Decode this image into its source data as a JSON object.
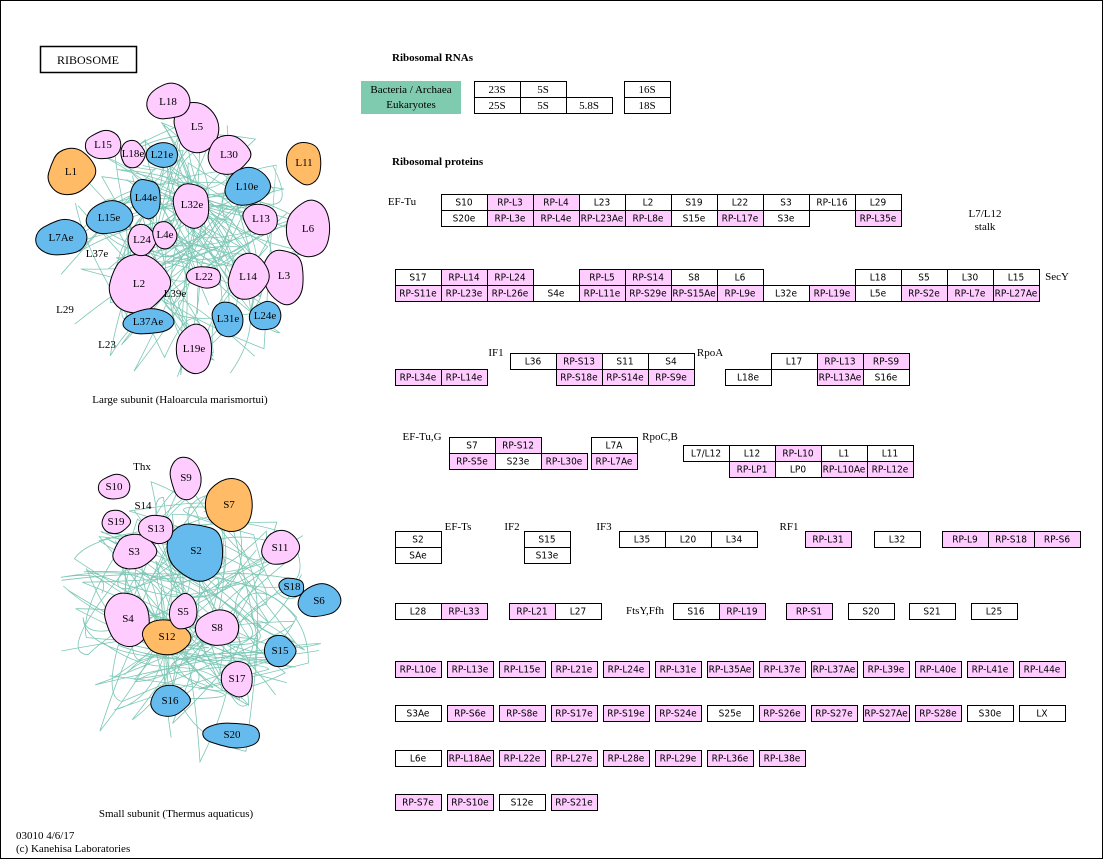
{
  "title": "RIBOSOME",
  "rna": {
    "heading": "Ribosomal RNAs",
    "legend": [
      "Bacteria / Archaea",
      "Eukaryotes"
    ],
    "boxes": [
      "23S",
      "5S",
      "16S",
      "25S",
      "5S",
      "5.8S",
      "18S"
    ]
  },
  "proteins": {
    "heading": "Ribosomal proteins",
    "labels": [
      "EF-Tu",
      "L7/L12",
      "stalk",
      "SecY",
      "IF1",
      "RpoA",
      "EF-Tu,G",
      "RpoC,B",
      "EF-Ts",
      "IF2",
      "IF3",
      "RF1",
      "FtsY,Ffh"
    ],
    "boxes": [
      {
        "label": "S10",
        "color": "#ffffff"
      },
      {
        "label": "RP-L3",
        "color": "#ffccff"
      },
      {
        "label": "RP-L4",
        "color": "#ffccff"
      },
      {
        "label": "L23",
        "color": "#ffffff"
      },
      {
        "label": "L2",
        "color": "#ffffff"
      },
      {
        "label": "S19",
        "color": "#ffffff"
      },
      {
        "label": "L22",
        "color": "#ffffff"
      },
      {
        "label": "S3",
        "color": "#ffffff"
      },
      {
        "label": "RP-L16",
        "color": "#ffffff"
      },
      {
        "label": "L29",
        "color": "#ffffff"
      },
      {
        "label": "S20e",
        "color": "#ffffff"
      },
      {
        "label": "RP-L3e",
        "color": "#ffccff"
      },
      {
        "label": "RP-L4e",
        "color": "#ffccff"
      },
      {
        "label": "RP-L23Ae",
        "color": "#ffccff"
      },
      {
        "label": "RP-L8e",
        "color": "#ffccff"
      },
      {
        "label": "S15e",
        "color": "#ffffff"
      },
      {
        "label": "RP-L17e",
        "color": "#ffccff"
      },
      {
        "label": "S3e",
        "color": "#ffffff"
      },
      {
        "label": "RP-L35e",
        "color": "#ffccff"
      },
      {
        "label": "S17",
        "color": "#ffffff"
      },
      {
        "label": "RP-L14",
        "color": "#ffccff"
      },
      {
        "label": "RP-L24",
        "color": "#ffccff"
      },
      {
        "label": "RP-L5",
        "color": "#ffccff"
      },
      {
        "label": "RP-S14",
        "color": "#ffccff"
      },
      {
        "label": "S8",
        "color": "#ffffff"
      },
      {
        "label": "L6",
        "color": "#ffffff"
      },
      {
        "label": "L18",
        "color": "#ffffff"
      },
      {
        "label": "S5",
        "color": "#ffffff"
      },
      {
        "label": "L30",
        "color": "#ffffff"
      },
      {
        "label": "L15",
        "color": "#ffffff"
      },
      {
        "label": "RP-S11e",
        "color": "#ffccff"
      },
      {
        "label": "RP-L23e",
        "color": "#ffccff"
      },
      {
        "label": "RP-L26e",
        "color": "#ffccff"
      },
      {
        "label": "S4e",
        "color": "#ffffff"
      },
      {
        "label": "RP-L11e",
        "color": "#ffccff"
      },
      {
        "label": "RP-S29e",
        "color": "#ffccff"
      },
      {
        "label": "RP-S15Ae",
        "color": "#ffccff"
      },
      {
        "label": "RP-L9e",
        "color": "#ffccff"
      },
      {
        "label": "L32e",
        "color": "#ffffff"
      },
      {
        "label": "RP-L19e",
        "color": "#ffccff"
      },
      {
        "label": "L5e",
        "color": "#ffffff"
      },
      {
        "label": "RP-S2e",
        "color": "#ffccff"
      },
      {
        "label": "RP-L7e",
        "color": "#ffccff"
      },
      {
        "label": "RP-L27Ae",
        "color": "#ffccff"
      },
      {
        "label": "L36",
        "color": "#ffffff"
      },
      {
        "label": "RP-S13",
        "color": "#ffccff"
      },
      {
        "label": "S11",
        "color": "#ffffff"
      },
      {
        "label": "S4",
        "color": "#ffffff"
      },
      {
        "label": "L17",
        "color": "#ffffff"
      },
      {
        "label": "RP-L13",
        "color": "#ffccff"
      },
      {
        "label": "RP-S9",
        "color": "#ffccff"
      },
      {
        "label": "RP-L34e",
        "color": "#ffccff"
      },
      {
        "label": "RP-L14e",
        "color": "#ffccff"
      },
      {
        "label": "RP-S18e",
        "color": "#ffccff"
      },
      {
        "label": "RP-S14e",
        "color": "#ffccff"
      },
      {
        "label": "RP-S9e",
        "color": "#ffccff"
      },
      {
        "label": "L18e",
        "color": "#ffffff"
      },
      {
        "label": "RP-L13Ae",
        "color": "#ffccff"
      },
      {
        "label": "S16e",
        "color": "#ffffff"
      },
      {
        "label": "S7",
        "color": "#ffffff"
      },
      {
        "label": "RP-S12",
        "color": "#ffccff"
      },
      {
        "label": "L7A",
        "color": "#ffffff"
      },
      {
        "label": "RP-S5e",
        "color": "#ffccff"
      },
      {
        "label": "S23e",
        "color": "#ffffff"
      },
      {
        "label": "RP-L30e",
        "color": "#ffccff"
      },
      {
        "label": "RP-L7Ae",
        "color": "#ffccff"
      },
      {
        "label": "L7/L12",
        "color": "#ffffff"
      },
      {
        "label": "L12",
        "color": "#ffffff"
      },
      {
        "label": "RP-L10",
        "color": "#ffccff"
      },
      {
        "label": "L1",
        "color": "#ffffff"
      },
      {
        "label": "L11",
        "color": "#ffffff"
      },
      {
        "label": "RP-LP1",
        "color": "#ffccff"
      },
      {
        "label": "LP0",
        "color": "#ffffff"
      },
      {
        "label": "RP-L10Ae",
        "color": "#ffccff"
      },
      {
        "label": "RP-L12e",
        "color": "#ffccff"
      },
      {
        "label": "S2",
        "color": "#ffffff"
      },
      {
        "label": "S15",
        "color": "#ffffff"
      },
      {
        "label": "L35",
        "color": "#ffffff"
      },
      {
        "label": "L20",
        "color": "#ffffff"
      },
      {
        "label": "L34",
        "color": "#ffffff"
      },
      {
        "label": "RP-L31",
        "color": "#ffccff"
      },
      {
        "label": "L32",
        "color": "#ffffff"
      },
      {
        "label": "RP-L9",
        "color": "#ffccff"
      },
      {
        "label": "RP-S18",
        "color": "#ffccff"
      },
      {
        "label": "RP-S6",
        "color": "#ffccff"
      },
      {
        "label": "SAe",
        "color": "#ffffff"
      },
      {
        "label": "S13e",
        "color": "#ffffff"
      },
      {
        "label": "L28",
        "color": "#ffffff"
      },
      {
        "label": "RP-L33",
        "color": "#ffccff"
      },
      {
        "label": "RP-L21",
        "color": "#ffccff"
      },
      {
        "label": "L27",
        "color": "#ffffff"
      },
      {
        "label": "S16",
        "color": "#ffffff"
      },
      {
        "label": "RP-L19",
        "color": "#ffccff"
      },
      {
        "label": "RP-S1",
        "color": "#ffccff"
      },
      {
        "label": "S20",
        "color": "#ffffff"
      },
      {
        "label": "S21",
        "color": "#ffffff"
      },
      {
        "label": "L25",
        "color": "#ffffff"
      },
      {
        "label": "RP-L10e",
        "color": "#ffccff"
      },
      {
        "label": "RP-L13e",
        "color": "#ffccff"
      },
      {
        "label": "RP-L15e",
        "color": "#ffccff"
      },
      {
        "label": "RP-L21e",
        "color": "#ffccff"
      },
      {
        "label": "RP-L24e",
        "color": "#ffccff"
      },
      {
        "label": "RP-L31e",
        "color": "#ffccff"
      },
      {
        "label": "RP-L35Ae",
        "color": "#ffccff"
      },
      {
        "label": "RP-L37e",
        "color": "#ffccff"
      },
      {
        "label": "RP-L37Ae",
        "color": "#ffccff"
      },
      {
        "label": "RP-L39e",
        "color": "#ffccff"
      },
      {
        "label": "RP-L40e",
        "color": "#ffccff"
      },
      {
        "label": "RP-L41e",
        "color": "#ffccff"
      },
      {
        "label": "RP-L44e",
        "color": "#ffccff"
      },
      {
        "label": "S3Ae",
        "color": "#ffffff"
      },
      {
        "label": "RP-S6e",
        "color": "#ffccff"
      },
      {
        "label": "RP-S8e",
        "color": "#ffccff"
      },
      {
        "label": "RP-S17e",
        "color": "#ffccff"
      },
      {
        "label": "RP-S19e",
        "color": "#ffccff"
      },
      {
        "label": "RP-S24e",
        "color": "#ffccff"
      },
      {
        "label": "S25e",
        "color": "#ffffff"
      },
      {
        "label": "RP-S26e",
        "color": "#ffccff"
      },
      {
        "label": "RP-S27e",
        "color": "#ffccff"
      },
      {
        "label": "RP-S27Ae",
        "color": "#ffccff"
      },
      {
        "label": "RP-S28e",
        "color": "#ffccff"
      },
      {
        "label": "S30e",
        "color": "#ffffff"
      },
      {
        "label": "LX",
        "color": "#ffffff"
      },
      {
        "label": "L6e",
        "color": "#ffffff"
      },
      {
        "label": "RP-L18Ae",
        "color": "#ffccff"
      },
      {
        "label": "RP-L22e",
        "color": "#ffccff"
      },
      {
        "label": "RP-L27e",
        "color": "#ffccff"
      },
      {
        "label": "RP-L28e",
        "color": "#ffccff"
      },
      {
        "label": "RP-L29e",
        "color": "#ffccff"
      },
      {
        "label": "RP-L36e",
        "color": "#ffccff"
      },
      {
        "label": "RP-L38e",
        "color": "#ffccff"
      },
      {
        "label": "RP-S7e",
        "color": "#ffccff"
      },
      {
        "label": "RP-S10e",
        "color": "#ffccff"
      },
      {
        "label": "S12e",
        "color": "#ffffff"
      },
      {
        "label": "RP-S21e",
        "color": "#ffccff"
      }
    ]
  },
  "large_subunit": {
    "caption": "Large subunit (Haloarcula marismortui)",
    "parts": [
      {
        "label": "L18",
        "color": "#ffccff"
      },
      {
        "label": "L5",
        "color": "#ffccff"
      },
      {
        "label": "L15",
        "color": "#ffccff"
      },
      {
        "label": "L18e",
        "color": "#ffccff"
      },
      {
        "label": "L21e",
        "color": "#66bbee"
      },
      {
        "label": "L30",
        "color": "#ffccff"
      },
      {
        "label": "L11",
        "color": "#ffbb66"
      },
      {
        "label": "L1",
        "color": "#ffbb66"
      },
      {
        "label": "L44e",
        "color": "#66bbee"
      },
      {
        "label": "L10e",
        "color": "#66bbee"
      },
      {
        "label": "L32e",
        "color": "#ffccff"
      },
      {
        "label": "L15e",
        "color": "#66bbee"
      },
      {
        "label": "L13",
        "color": "#ffccff"
      },
      {
        "label": "L7Ae",
        "color": "#66bbee"
      },
      {
        "label": "L4e",
        "color": "#ffccff"
      },
      {
        "label": "L6",
        "color": "#ffccff"
      },
      {
        "label": "L24",
        "color": "#ffccff"
      },
      {
        "label": "L37e"
      },
      {
        "label": "L2",
        "color": "#ffccff"
      },
      {
        "label": "L22",
        "color": "#ffccff"
      },
      {
        "label": "L14",
        "color": "#ffccff"
      },
      {
        "label": "L3",
        "color": "#ffccff"
      },
      {
        "label": "L39e"
      },
      {
        "label": "L29"
      },
      {
        "label": "L37Ae",
        "color": "#66bbee"
      },
      {
        "label": "L31e",
        "color": "#66bbee"
      },
      {
        "label": "L24e",
        "color": "#66bbee"
      },
      {
        "label": "L23"
      },
      {
        "label": "L19e",
        "color": "#ffccff"
      }
    ]
  },
  "small_subunit": {
    "caption": "Small subunit (Thermus aquaticus)",
    "parts": [
      {
        "label": "Thx"
      },
      {
        "label": "S9",
        "color": "#ffccff"
      },
      {
        "label": "S10",
        "color": "#ffccff"
      },
      {
        "label": "S14"
      },
      {
        "label": "S7",
        "color": "#ffbb66"
      },
      {
        "label": "S19",
        "color": "#ffccff"
      },
      {
        "label": "S13",
        "color": "#ffccff"
      },
      {
        "label": "S3",
        "color": "#ffccff"
      },
      {
        "label": "S2",
        "color": "#66bbee"
      },
      {
        "label": "S11",
        "color": "#ffccff"
      },
      {
        "label": "S18",
        "color": "#66bbee"
      },
      {
        "label": "S6",
        "color": "#66bbee"
      },
      {
        "label": "S4",
        "color": "#ffccff"
      },
      {
        "label": "S5",
        "color": "#ffccff"
      },
      {
        "label": "S12",
        "color": "#ffbb66"
      },
      {
        "label": "S8",
        "color": "#ffccff"
      },
      {
        "label": "S15",
        "color": "#66bbee"
      },
      {
        "label": "S17",
        "color": "#ffccff"
      },
      {
        "label": "S16",
        "color": "#66bbee"
      },
      {
        "label": "S20",
        "color": "#66bbee"
      }
    ]
  },
  "footer": [
    "03010 4/6/17",
    "(c) Kanehisa Laboratories"
  ]
}
